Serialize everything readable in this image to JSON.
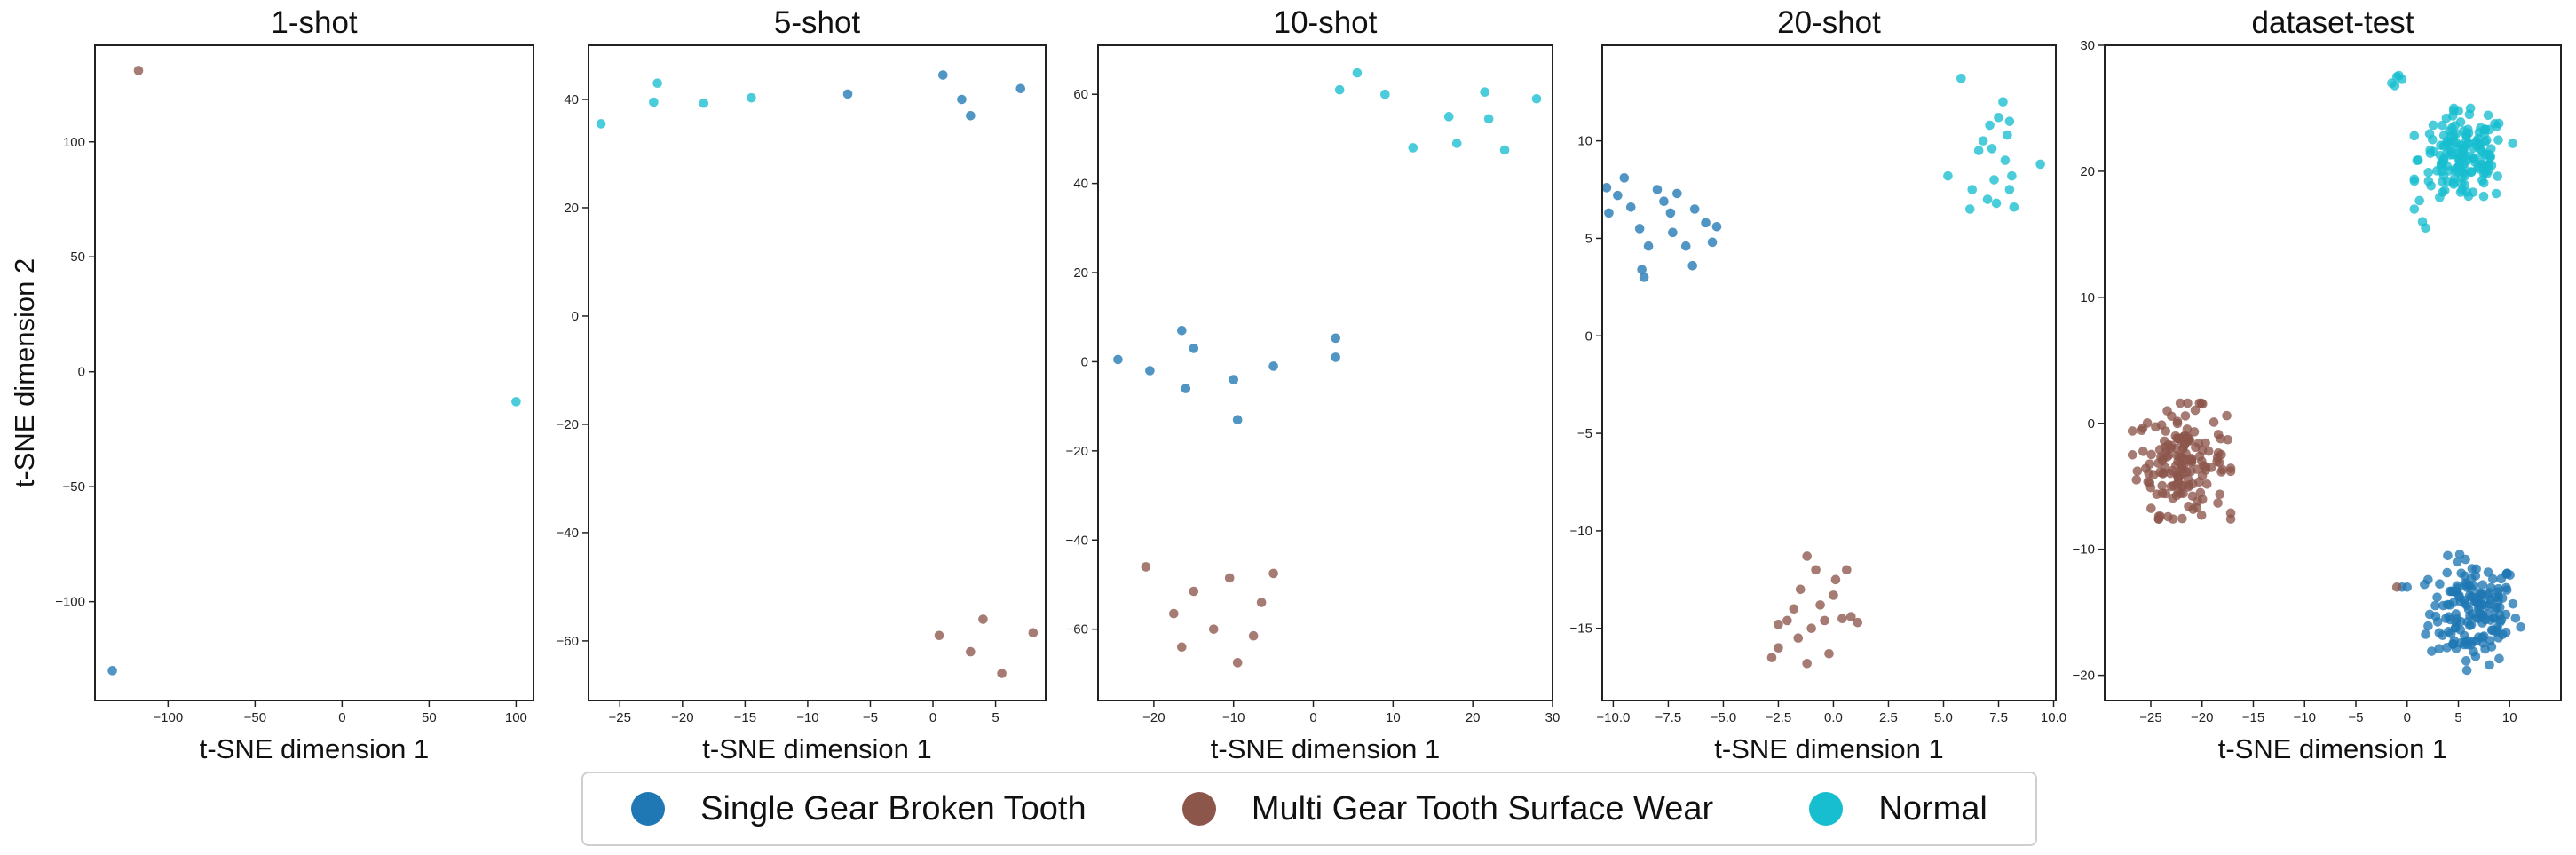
{
  "figure": {
    "ylabel": "t-SNE dimension 2",
    "colors": {
      "Single Gear Broken Tooth": "#1f77b4",
      "Multi Gear Tooth Surface Wear": "#8c564b",
      "Normal": "#17becf"
    }
  },
  "legend": {
    "items": [
      {
        "label": "Single Gear Broken Tooth",
        "color": "#1f77b4"
      },
      {
        "label": "Multi Gear Tooth Surface Wear",
        "color": "#8c564b"
      },
      {
        "label": "Normal",
        "color": "#17becf"
      }
    ],
    "placement": "bottom-center"
  },
  "chart_data": [
    {
      "type": "scatter",
      "title": "1-shot",
      "xlabel": "t-SNE dimension 1",
      "xlim": [
        -142,
        110
      ],
      "ylim": [
        -143,
        142
      ],
      "xticks": [
        -100,
        -50,
        0,
        50,
        100
      ],
      "xtick_labels": [
        "−100",
        "−50",
        "0",
        "50",
        "100"
      ],
      "yticks": [
        -100,
        -50,
        0,
        50,
        100
      ],
      "ytick_labels": [
        "−100",
        "−50",
        "0",
        "50",
        "100"
      ],
      "series": [
        {
          "name": "Single Gear Broken Tooth",
          "points": [
            [
              -132,
              -130
            ]
          ]
        },
        {
          "name": "Multi Gear Tooth Surface Wear",
          "points": [
            [
              -117,
              131
            ]
          ]
        },
        {
          "name": "Normal",
          "points": [
            [
              100,
              -13
            ]
          ]
        }
      ]
    },
    {
      "type": "scatter",
      "title": "5-shot",
      "xlabel": "t-SNE dimension 1",
      "xlim": [
        -27.5,
        9
      ],
      "ylim": [
        -71,
        50
      ],
      "xticks": [
        -25,
        -20,
        -15,
        -10,
        -5,
        0,
        5
      ],
      "xtick_labels": [
        "−25",
        "−20",
        "−15",
        "−10",
        "−5",
        "0",
        "5"
      ],
      "yticks": [
        -60,
        -40,
        -20,
        0,
        20,
        40
      ],
      "ytick_labels": [
        "−60",
        "−40",
        "−20",
        "0",
        "20",
        "40"
      ],
      "series": [
        {
          "name": "Single Gear Broken Tooth",
          "points": [
            [
              -6.8,
              41
            ],
            [
              0.8,
              44.5
            ],
            [
              2.3,
              40
            ],
            [
              3.0,
              37
            ],
            [
              7.0,
              42
            ]
          ]
        },
        {
          "name": "Multi Gear Tooth Surface Wear",
          "points": [
            [
              0.5,
              -59
            ],
            [
              3.0,
              -62
            ],
            [
              4.0,
              -56
            ],
            [
              5.5,
              -66
            ],
            [
              8.0,
              -58.5
            ]
          ]
        },
        {
          "name": "Normal",
          "points": [
            [
              -26.5,
              35.5
            ],
            [
              -22,
              43
            ],
            [
              -22.3,
              39.5
            ],
            [
              -18.3,
              39.3
            ],
            [
              -14.5,
              40.3
            ]
          ]
        }
      ]
    },
    {
      "type": "scatter",
      "title": "10-shot",
      "xlabel": "t-SNE dimension 1",
      "xlim": [
        -27,
        30
      ],
      "ylim": [
        -76,
        71
      ],
      "xticks": [
        -20,
        -10,
        0,
        10,
        20,
        30
      ],
      "xtick_labels": [
        "−20",
        "−10",
        "0",
        "10",
        "20",
        "30"
      ],
      "yticks": [
        -60,
        -40,
        -20,
        0,
        20,
        40,
        60
      ],
      "ytick_labels": [
        "−60",
        "−40",
        "−20",
        "0",
        "20",
        "40",
        "60"
      ],
      "series": [
        {
          "name": "Single Gear Broken Tooth",
          "points": [
            [
              -24.5,
              0.5
            ],
            [
              -20.5,
              -2
            ],
            [
              -16.5,
              7
            ],
            [
              -15,
              3
            ],
            [
              -16,
              -6
            ],
            [
              -10,
              -4
            ],
            [
              -9.5,
              -13
            ],
            [
              -5,
              -1
            ],
            [
              2.8,
              5.3
            ],
            [
              2.8,
              1
            ]
          ]
        },
        {
          "name": "Multi Gear Tooth Surface Wear",
          "points": [
            [
              -21,
              -46
            ],
            [
              -17.5,
              -56.5
            ],
            [
              -15,
              -51.5
            ],
            [
              -16.5,
              -64
            ],
            [
              -12.5,
              -60
            ],
            [
              -10.5,
              -48.5
            ],
            [
              -9.5,
              -67.5
            ],
            [
              -7.5,
              -61.5
            ],
            [
              -6.5,
              -54
            ],
            [
              -5,
              -47.5
            ]
          ]
        },
        {
          "name": "Normal",
          "points": [
            [
              3.3,
              61
            ],
            [
              5.5,
              64.8
            ],
            [
              9,
              60
            ],
            [
              12.5,
              48
            ],
            [
              17,
              55
            ],
            [
              18,
              49
            ],
            [
              21.5,
              60.5
            ],
            [
              22,
              54.5
            ],
            [
              24,
              47.5
            ],
            [
              28,
              59
            ]
          ]
        }
      ]
    },
    {
      "type": "scatter",
      "title": "20-shot",
      "xlabel": "t-SNE dimension 1",
      "xlim": [
        -10.5,
        10.1
      ],
      "ylim": [
        -18.7,
        14.9
      ],
      "xticks": [
        -10.0,
        -7.5,
        -5.0,
        -2.5,
        0.0,
        2.5,
        5.0,
        7.5,
        10.0
      ],
      "xtick_labels": [
        "−10.0",
        "−7.5",
        "−5.0",
        "−2.5",
        "0.0",
        "2.5",
        "5.0",
        "7.5",
        "10.0"
      ],
      "yticks": [
        -15,
        -10,
        -5,
        0,
        5,
        10
      ],
      "ytick_labels": [
        "−15",
        "−10",
        "−5",
        "0",
        "5",
        "10"
      ],
      "series": [
        {
          "name": "Single Gear Broken Tooth",
          "points": [
            [
              -10.3,
              7.6
            ],
            [
              -10.2,
              6.3
            ],
            [
              -9.5,
              8.1
            ],
            [
              -9.2,
              6.6
            ],
            [
              -8.8,
              5.5
            ],
            [
              -8.6,
              3.0
            ],
            [
              -8.4,
              4.6
            ],
            [
              -8.0,
              7.5
            ],
            [
              -7.7,
              6.9
            ],
            [
              -7.4,
              6.3
            ],
            [
              -7.3,
              5.3
            ],
            [
              -7.1,
              7.3
            ],
            [
              -6.7,
              4.6
            ],
            [
              -6.4,
              3.6
            ],
            [
              -6.3,
              6.5
            ],
            [
              -5.8,
              5.8
            ],
            [
              -5.5,
              4.8
            ],
            [
              -5.3,
              5.6
            ],
            [
              -8.7,
              3.4
            ],
            [
              -9.8,
              7.2
            ]
          ]
        },
        {
          "name": "Multi Gear Tooth Surface Wear",
          "points": [
            [
              -2.8,
              -16.5
            ],
            [
              -2.5,
              -16.0
            ],
            [
              -2.5,
              -14.8
            ],
            [
              -2.1,
              -14.6
            ],
            [
              -1.8,
              -14.0
            ],
            [
              -1.6,
              -15.5
            ],
            [
              -1.5,
              -13.0
            ],
            [
              -1.2,
              -16.8
            ],
            [
              -1.2,
              -11.3
            ],
            [
              -1.0,
              -15.0
            ],
            [
              -0.8,
              -12.0
            ],
            [
              -0.6,
              -13.8
            ],
            [
              -0.4,
              -14.6
            ],
            [
              -0.2,
              -16.3
            ],
            [
              0.0,
              -13.3
            ],
            [
              0.1,
              -12.5
            ],
            [
              0.4,
              -14.5
            ],
            [
              0.6,
              -12.0
            ],
            [
              0.8,
              -14.4
            ],
            [
              1.1,
              -14.7
            ]
          ]
        },
        {
          "name": "Normal",
          "points": [
            [
              5.2,
              8.2
            ],
            [
              5.8,
              13.2
            ],
            [
              6.2,
              6.5
            ],
            [
              6.3,
              7.5
            ],
            [
              6.6,
              9.5
            ],
            [
              6.8,
              10.0
            ],
            [
              7.0,
              7.0
            ],
            [
              7.1,
              10.8
            ],
            [
              7.3,
              8.0
            ],
            [
              7.4,
              6.8
            ],
            [
              7.5,
              11.2
            ],
            [
              7.7,
              12.0
            ],
            [
              7.8,
              9.0
            ],
            [
              7.9,
              10.3
            ],
            [
              8.0,
              7.5
            ],
            [
              8.0,
              11.0
            ],
            [
              8.2,
              6.6
            ],
            [
              8.1,
              8.2
            ],
            [
              7.2,
              9.6
            ],
            [
              9.4,
              8.8
            ]
          ]
        }
      ]
    },
    {
      "type": "scatter",
      "title": "dataset-test",
      "xlabel": "t-SNE dimension 1",
      "xlim": [
        -29.5,
        15
      ],
      "ylim": [
        -22,
        30
      ],
      "xticks": [
        -25,
        -20,
        -15,
        -10,
        -5,
        0,
        5,
        10
      ],
      "xtick_labels": [
        "−25",
        "−20",
        "−15",
        "−10",
        "−5",
        "0",
        "5",
        "10"
      ],
      "yticks": [
        -20,
        -10,
        0,
        10,
        20,
        30
      ],
      "ytick_labels": [
        "−20",
        "−10",
        "0",
        "10",
        "20",
        "30"
      ],
      "clusters": [
        {
          "name": "Single Gear Broken Tooth",
          "n": 160,
          "center": [
            6.5,
            -15.0
          ],
          "spread": [
            4.8,
            4.6
          ],
          "extra_points": [
            [
              -0.5,
              -13.0
            ],
            [
              0.0,
              -13.0
            ]
          ]
        },
        {
          "name": "Multi Gear Tooth Surface Wear",
          "n": 160,
          "center": [
            -22.0,
            -3.0
          ],
          "spread": [
            4.8,
            4.6
          ],
          "extra_points": [
            [
              -1.0,
              -13.0
            ]
          ]
        },
        {
          "name": "Normal",
          "n": 160,
          "center": [
            5.5,
            21.0
          ],
          "spread": [
            4.8,
            4.0
          ],
          "extra_points": [
            [
              -1.5,
              27.0
            ],
            [
              -1.0,
              27.5
            ],
            [
              -0.5,
              27.3
            ],
            [
              -1.2,
              26.8
            ],
            [
              -0.8,
              27.6
            ],
            [
              1.5,
              16.0
            ],
            [
              1.8,
              15.5
            ]
          ]
        }
      ]
    }
  ]
}
